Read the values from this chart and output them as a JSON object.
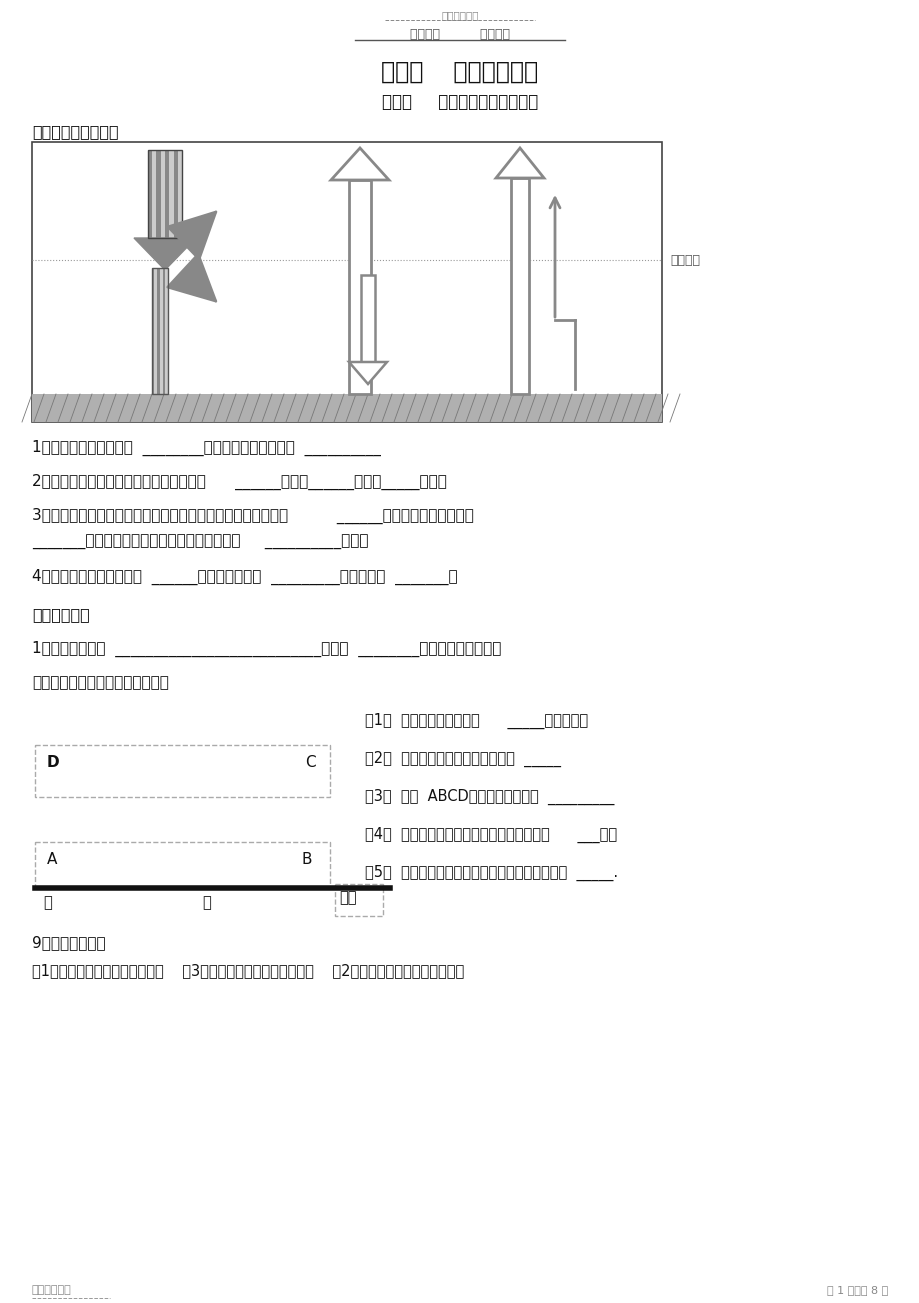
{
  "page_width": 9.2,
  "page_height": 13.03,
  "bg_color": "#ffffff",
  "header_text1": "精选学习资料",
  "header_text2": "学习必备          欢迎下载",
  "title": "第二章    地球上的大气",
  "subtitle": "第一节     冷热不均引起大气运动",
  "section1": "一、大气的受热过程",
  "section2": "二、热力环流",
  "q1": "1、大气受热的直接热源  ________，大气受热的根本热源  __________",
  "q2": "2、大气对太阳辐射的削弱作用主要表现在      ______作用、______作用、_____作用。",
  "q3": "3、大气对地面的保温作用：主要表现在大气在增温的同时产生          ______辐射，其中绝大部分以",
  "q3b": "_______辐射方式把热量还给地面，对地面起到     __________作用。",
  "q4": "4、一天当中太阳辐射最强  ______、地面辐射最强  _________、温度最强  _______。",
  "q5": "1、热力环流是指  ___________________________，它是  ________运动最简单的形式。",
  "q6": "请用图示意热力环流的形成过程。",
  "q_1": "（1）  左图气压类型是针对      _____方向而言的",
  "q_2": "（2）  同一地点，海拔越高，气压越  _____",
  "q_3": "（3）  比较  ABCD地点的气压的高低  _________",
  "q_4": "（4）  等压面向高空凸，表示水平面对应的是      ___压。",
  "q_5": "（5）  同一垂直方向上，近地面和高空的气压类型  _____.",
  "q9": "9、热力环流实例",
  "q9a": "（1）请用图示意海陆风的形成。    （3）请用图示意山谷风的形成。    （2）请用图示意城市风的形成。",
  "footer_left": "名师归纳总结",
  "footer_right": "第 1 页，共 8 页",
  "atm_label": "大气上界",
  "cold_label": "冷",
  "hot_label": "热",
  "face_label": "地面",
  "d_label": "D",
  "c_label": "C",
  "a_label": "A",
  "b_label": "B"
}
